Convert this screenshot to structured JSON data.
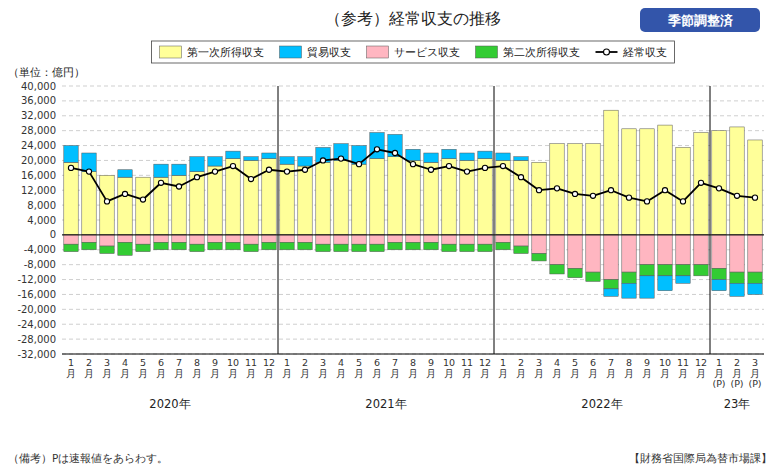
{
  "chart_data": {
    "type": "bar",
    "stacked": true,
    "title": "（参考）経常収支の推移",
    "subtitle": "季節調整済",
    "y_label": "（単位：億円）",
    "annotations": [
      "2020年",
      "2021年",
      "2022年",
      "23年"
    ],
    "footnotes": [
      "（備考）Pは速報値をあらわす。",
      "【財務省国際局為替市場課】"
    ],
    "grid": true,
    "legend": "top",
    "categories": [
      "1\n月",
      "2\n月",
      "3\n月",
      "4\n月",
      "5\n月",
      "6\n月",
      "7\n月",
      "8\n月",
      "9\n月",
      "10\n月",
      "11\n月",
      "12\n月",
      "1\n月",
      "2\n月",
      "3\n月",
      "4\n月",
      "5\n月",
      "6\n月",
      "7\n月",
      "8\n月",
      "9\n月",
      "10\n月",
      "11\n月",
      "12\n月",
      "1\n月",
      "2\n月",
      "3\n月",
      "4\n月",
      "5\n月",
      "6\n月",
      "7\n月",
      "8\n月",
      "9\n月",
      "10\n月",
      "11\n月",
      "12\n月",
      "1\n月\n(P)",
      "2\n月\n(P)",
      "3\n月\n(P)"
    ],
    "series": [
      {
        "name": "第一次所得収支",
        "color": "#FFFF99",
        "values": [
          19500,
          17000,
          16000,
          15500,
          15500,
          15500,
          16000,
          17000,
          18500,
          20500,
          20000,
          20500,
          19000,
          18500,
          19500,
          20000,
          19000,
          20500,
          21000,
          20000,
          19500,
          20500,
          20000,
          20500,
          20000,
          20000,
          19500,
          24500,
          24500,
          24500,
          33500,
          28500,
          28500,
          29500,
          23500,
          27500,
          28000,
          29000,
          25500
        ]
      },
      {
        "name": "貿易収支",
        "color": "#00BFFF",
        "values": [
          4500,
          5000,
          0,
          2000,
          0,
          3500,
          3000,
          4000,
          2500,
          2000,
          1000,
          1500,
          2000,
          2500,
          4000,
          4500,
          5000,
          7000,
          6000,
          3000,
          2500,
          2500,
          2000,
          2000,
          2000,
          1000,
          0,
          0,
          0,
          0,
          -2000,
          -4000,
          -6000,
          -4000,
          -2000,
          0,
          -3000,
          -3500,
          -3000
        ]
      },
      {
        "name": "サービス収支",
        "color": "#FFB6C1",
        "values": [
          -2500,
          -2000,
          -3000,
          -2000,
          -2500,
          -2000,
          -2000,
          -2500,
          -2000,
          -2000,
          -2500,
          -2000,
          -2000,
          -2000,
          -2500,
          -2500,
          -2500,
          -2500,
          -2000,
          -2000,
          -2000,
          -2500,
          -2500,
          -2500,
          -2000,
          -3000,
          -5000,
          -8000,
          -9000,
          -10000,
          -12000,
          -10000,
          -8000,
          -8000,
          -8000,
          -8000,
          -9000,
          -10000,
          -10000
        ]
      },
      {
        "name": "第二次所得収支",
        "color": "#33CC33",
        "values": [
          -2000,
          -2000,
          -2000,
          -3500,
          -2000,
          -2000,
          -2000,
          -2000,
          -2000,
          -2000,
          -2000,
          -2000,
          -2000,
          -2000,
          -2000,
          -2000,
          -2000,
          -2000,
          -2000,
          -2000,
          -2000,
          -2000,
          -2000,
          -2000,
          -2000,
          -2000,
          -2000,
          -2500,
          -2500,
          -2500,
          -2500,
          -3000,
          -3000,
          -3000,
          -3000,
          -3000,
          -3000,
          -3000,
          -3000
        ]
      },
      {
        "name": "経常収支",
        "type": "line",
        "marker": "circle",
        "color": "#000000",
        "values": [
          18000,
          17000,
          9000,
          11000,
          9500,
          14000,
          13000,
          15500,
          17000,
          18500,
          15000,
          17500,
          17000,
          17500,
          20000,
          20500,
          19000,
          23000,
          22000,
          19000,
          17500,
          18500,
          17000,
          18000,
          18500,
          15500,
          12000,
          12500,
          11000,
          10500,
          12000,
          10000,
          9000,
          12000,
          9000,
          14000,
          12500,
          10500,
          10000
        ]
      }
    ],
    "ylim": [
      -32000,
      40000
    ],
    "yticks": [
      {
        "value": -32000,
        "label": "-32,000"
      },
      {
        "value": -28000,
        "label": "-28,000"
      },
      {
        "value": -24000,
        "label": "-24,000"
      },
      {
        "value": -20000,
        "label": "-20,000"
      },
      {
        "value": -16000,
        "label": "-16,000"
      },
      {
        "value": -12000,
        "label": "-12,000"
      },
      {
        "value": -8000,
        "label": "-8,000"
      },
      {
        "value": -4000,
        "label": "-4,000"
      },
      0,
      {
        "value": 4000,
        "label": "4,000"
      },
      {
        "value": 8000,
        "label": "8,000"
      },
      {
        "value": 12000,
        "label": "12,000"
      },
      {
        "value": 16000,
        "label": "16,000"
      },
      {
        "value": 20000,
        "label": "20,000"
      },
      {
        "value": 24000,
        "label": "24,000"
      },
      {
        "value": 28000,
        "label": "28,000"
      },
      {
        "value": 32000,
        "label": "32,000"
      },
      {
        "value": 36000,
        "label": "36,000"
      },
      {
        "value": 40000,
        "label": "40,000"
      }
    ]
  }
}
